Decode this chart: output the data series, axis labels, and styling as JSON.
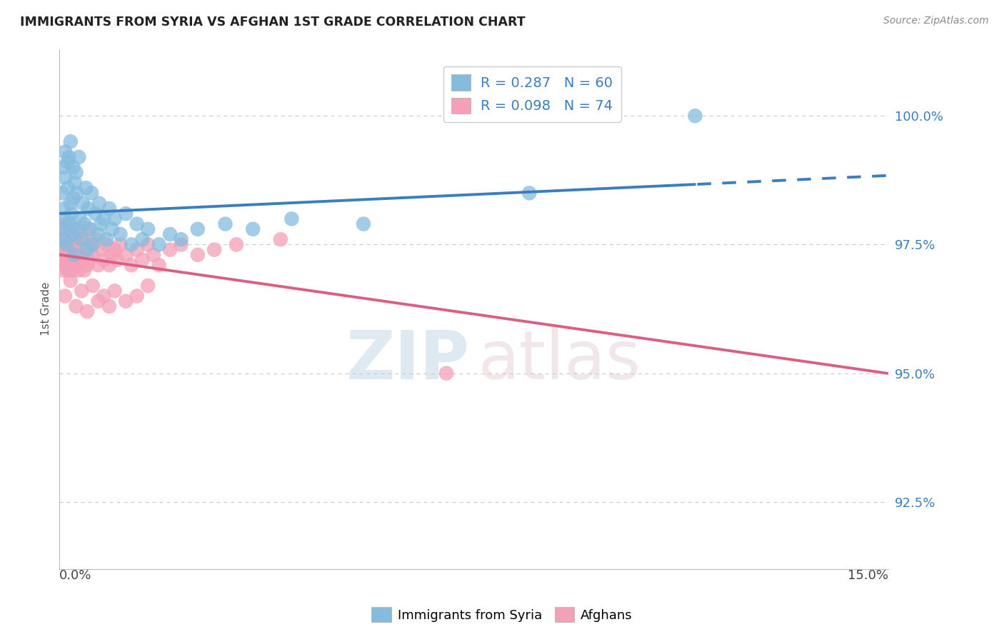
{
  "title": "IMMIGRANTS FROM SYRIA VS AFGHAN 1ST GRADE CORRELATION CHART",
  "source": "Source: ZipAtlas.com",
  "ylabel": "1st Grade",
  "right_yticks": [
    92.5,
    95.0,
    97.5,
    100.0
  ],
  "xmin": 0.0,
  "xmax": 15.0,
  "ymin": 91.2,
  "ymax": 101.3,
  "series1_label": "Immigrants from Syria",
  "series1_color": "#85bcde",
  "series1_R": 0.287,
  "series1_N": 60,
  "series2_label": "Afghans",
  "series2_color": "#f4a0b8",
  "series2_R": 0.098,
  "series2_N": 74,
  "blue_scatter_x": [
    0.05,
    0.05,
    0.07,
    0.08,
    0.09,
    0.1,
    0.1,
    0.12,
    0.13,
    0.15,
    0.15,
    0.17,
    0.18,
    0.2,
    0.2,
    0.22,
    0.23,
    0.25,
    0.25,
    0.27,
    0.28,
    0.3,
    0.3,
    0.32,
    0.35,
    0.37,
    0.4,
    0.42,
    0.45,
    0.48,
    0.5,
    0.52,
    0.55,
    0.58,
    0.6,
    0.65,
    0.7,
    0.72,
    0.75,
    0.8,
    0.85,
    0.9,
    0.95,
    1.0,
    1.1,
    1.2,
    1.3,
    1.4,
    1.5,
    1.6,
    1.8,
    2.0,
    2.2,
    2.5,
    3.0,
    3.5,
    4.2,
    5.5,
    8.5,
    11.5
  ],
  "blue_scatter_y": [
    97.8,
    98.5,
    99.0,
    98.2,
    97.6,
    98.8,
    99.3,
    98.0,
    97.5,
    99.1,
    98.6,
    99.2,
    97.9,
    98.3,
    99.5,
    98.1,
    97.7,
    98.4,
    99.0,
    97.3,
    98.7,
    98.9,
    97.8,
    98.5,
    99.2,
    98.0,
    97.6,
    98.3,
    97.9,
    98.6,
    97.4,
    98.2,
    97.8,
    98.5,
    97.5,
    98.1,
    97.7,
    98.3,
    97.9,
    98.0,
    97.6,
    98.2,
    97.8,
    98.0,
    97.7,
    98.1,
    97.5,
    97.9,
    97.6,
    97.8,
    97.5,
    97.7,
    97.6,
    97.8,
    97.9,
    97.8,
    98.0,
    97.9,
    98.5,
    100.0
  ],
  "pink_scatter_x": [
    0.04,
    0.05,
    0.06,
    0.07,
    0.08,
    0.09,
    0.1,
    0.11,
    0.12,
    0.13,
    0.14,
    0.15,
    0.16,
    0.17,
    0.18,
    0.19,
    0.2,
    0.21,
    0.22,
    0.23,
    0.25,
    0.27,
    0.28,
    0.3,
    0.32,
    0.33,
    0.35,
    0.37,
    0.4,
    0.42,
    0.45,
    0.48,
    0.5,
    0.52,
    0.55,
    0.58,
    0.6,
    0.65,
    0.7,
    0.75,
    0.8,
    0.85,
    0.9,
    0.95,
    1.0,
    1.05,
    1.1,
    1.2,
    1.3,
    1.4,
    1.5,
    1.6,
    1.7,
    1.8,
    2.0,
    2.2,
    2.5,
    2.8,
    3.2,
    4.0,
    0.1,
    0.2,
    0.3,
    0.4,
    0.5,
    0.6,
    0.7,
    0.8,
    0.9,
    1.0,
    1.2,
    1.4,
    1.6,
    7.0
  ],
  "pink_scatter_y": [
    97.3,
    97.8,
    97.0,
    97.5,
    97.2,
    97.9,
    97.4,
    97.6,
    97.1,
    97.8,
    97.3,
    97.0,
    97.7,
    97.2,
    97.5,
    97.0,
    97.3,
    97.8,
    97.1,
    97.6,
    97.0,
    97.4,
    97.2,
    97.5,
    97.1,
    97.7,
    97.0,
    97.3,
    97.2,
    97.6,
    97.0,
    97.4,
    97.1,
    97.8,
    97.2,
    97.5,
    97.3,
    97.6,
    97.1,
    97.4,
    97.2,
    97.5,
    97.1,
    97.3,
    97.4,
    97.2,
    97.5,
    97.3,
    97.1,
    97.4,
    97.2,
    97.5,
    97.3,
    97.1,
    97.4,
    97.5,
    97.3,
    97.4,
    97.5,
    97.6,
    96.5,
    96.8,
    96.3,
    96.6,
    96.2,
    96.7,
    96.4,
    96.5,
    96.3,
    96.6,
    96.4,
    96.5,
    96.7,
    95.0
  ]
}
